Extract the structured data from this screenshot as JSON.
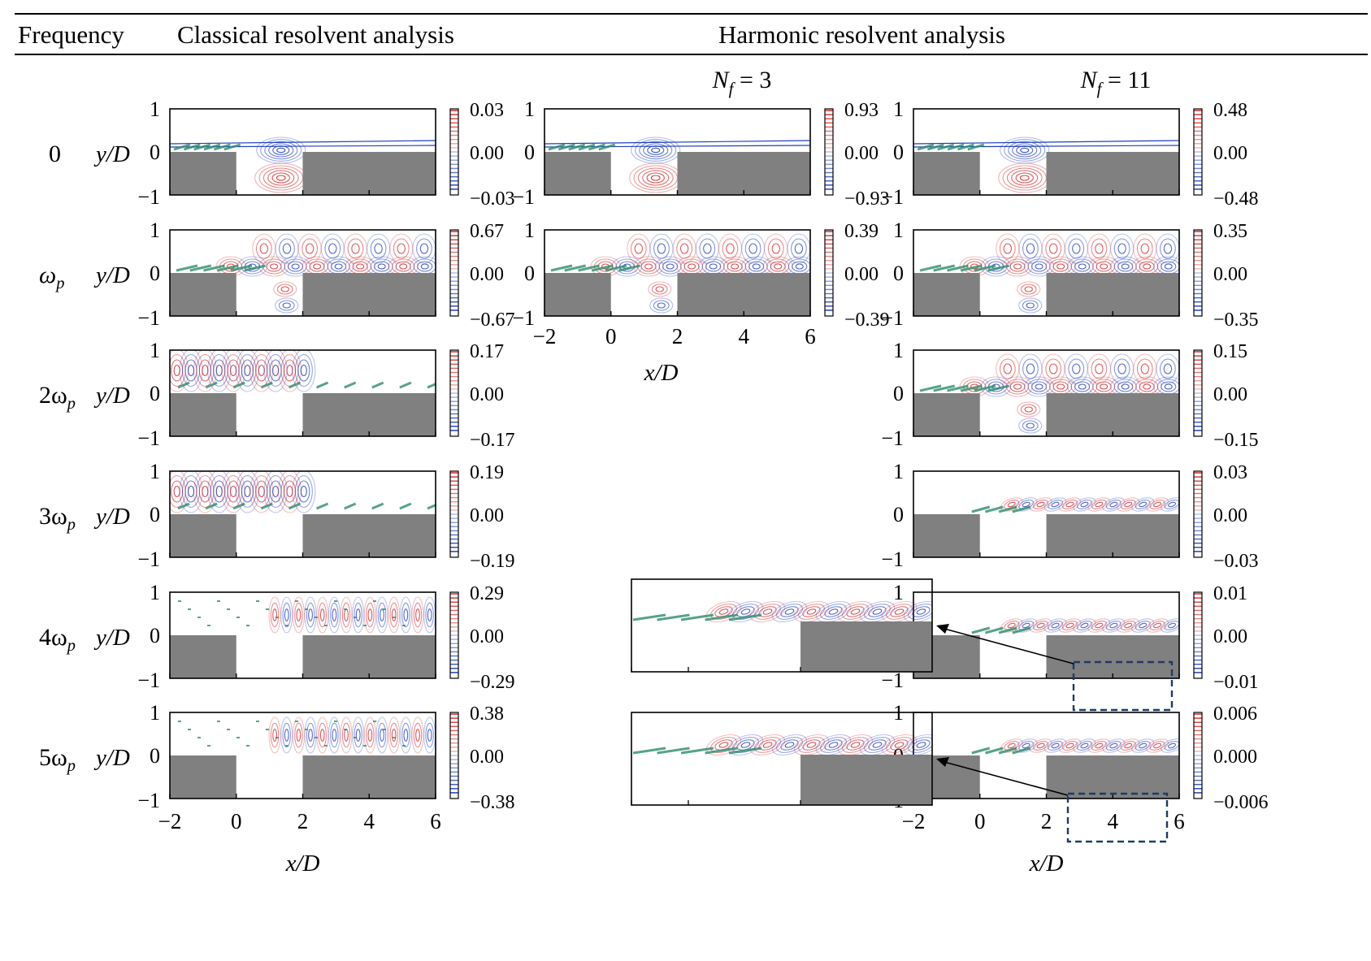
{
  "header": {
    "frequency": "Frequency",
    "classical": "Classical resolvent analysis",
    "harmonic": "Harmonic resolvent analysis"
  },
  "subheaders": {
    "nf3": {
      "symbol": "N",
      "sub": "f",
      "rest": " = 3"
    },
    "nf11": {
      "symbol": "N",
      "sub": "f",
      "rest": " = 11"
    }
  },
  "rows": [
    {
      "freq": "0",
      "classical": {
        "cb": [
          "0.03",
          "0.00",
          "−0.03"
        ]
      },
      "nf3": {
        "cb": [
          "0.93",
          "0.00",
          "−0.93"
        ]
      },
      "nf11": {
        "cb": [
          "0.48",
          "0.00",
          "−0.48"
        ]
      }
    },
    {
      "freq": "ωp",
      "freq_base": "ω",
      "freq_sub": "p",
      "classical": {
        "cb": [
          "0.67",
          "0.00",
          "−0.67"
        ]
      },
      "nf3": {
        "cb": [
          "0.39",
          "0.00",
          "−0.39"
        ]
      },
      "nf11": {
        "cb": [
          "0.35",
          "0.00",
          "−0.35"
        ]
      }
    },
    {
      "freq": "2ωp",
      "freq_base": "2ω",
      "freq_sub": "p",
      "classical": {
        "cb": [
          "0.17",
          "0.00",
          "−0.17"
        ]
      },
      "nf11": {
        "cb": [
          "0.15",
          "0.00",
          "−0.15"
        ]
      }
    },
    {
      "freq": "3ωp",
      "freq_base": "3ω",
      "freq_sub": "p",
      "classical": {
        "cb": [
          "0.19",
          "0.00",
          "−0.19"
        ]
      },
      "nf11": {
        "cb": [
          "0.03",
          "0.00",
          "−0.03"
        ]
      }
    },
    {
      "freq": "4ωp",
      "freq_base": "4ω",
      "freq_sub": "p",
      "classical": {
        "cb": [
          "0.29",
          "0.00",
          "−0.29"
        ]
      },
      "nf11": {
        "cb": [
          "0.01",
          "0.00",
          "−0.01"
        ]
      }
    },
    {
      "freq": "5ωp",
      "freq_base": "5ω",
      "freq_sub": "p",
      "classical": {
        "cb": [
          "0.38",
          "0.00",
          "−0.38"
        ]
      },
      "nf11": {
        "cb": [
          "0.006",
          "0.000",
          "−0.006"
        ]
      }
    }
  ],
  "axes": {
    "ylabel": "y/D",
    "yticks": [
      "1",
      "0",
      "−1"
    ],
    "xticks": [
      "−2",
      "0",
      "2",
      "4",
      "6"
    ],
    "xlabel": "x/D"
  },
  "colors": {
    "red": "#d62728",
    "blue": "#1f3fbf",
    "green": "#2e8b6e",
    "gray": "#808080",
    "inset_box": "#1f3a68"
  }
}
